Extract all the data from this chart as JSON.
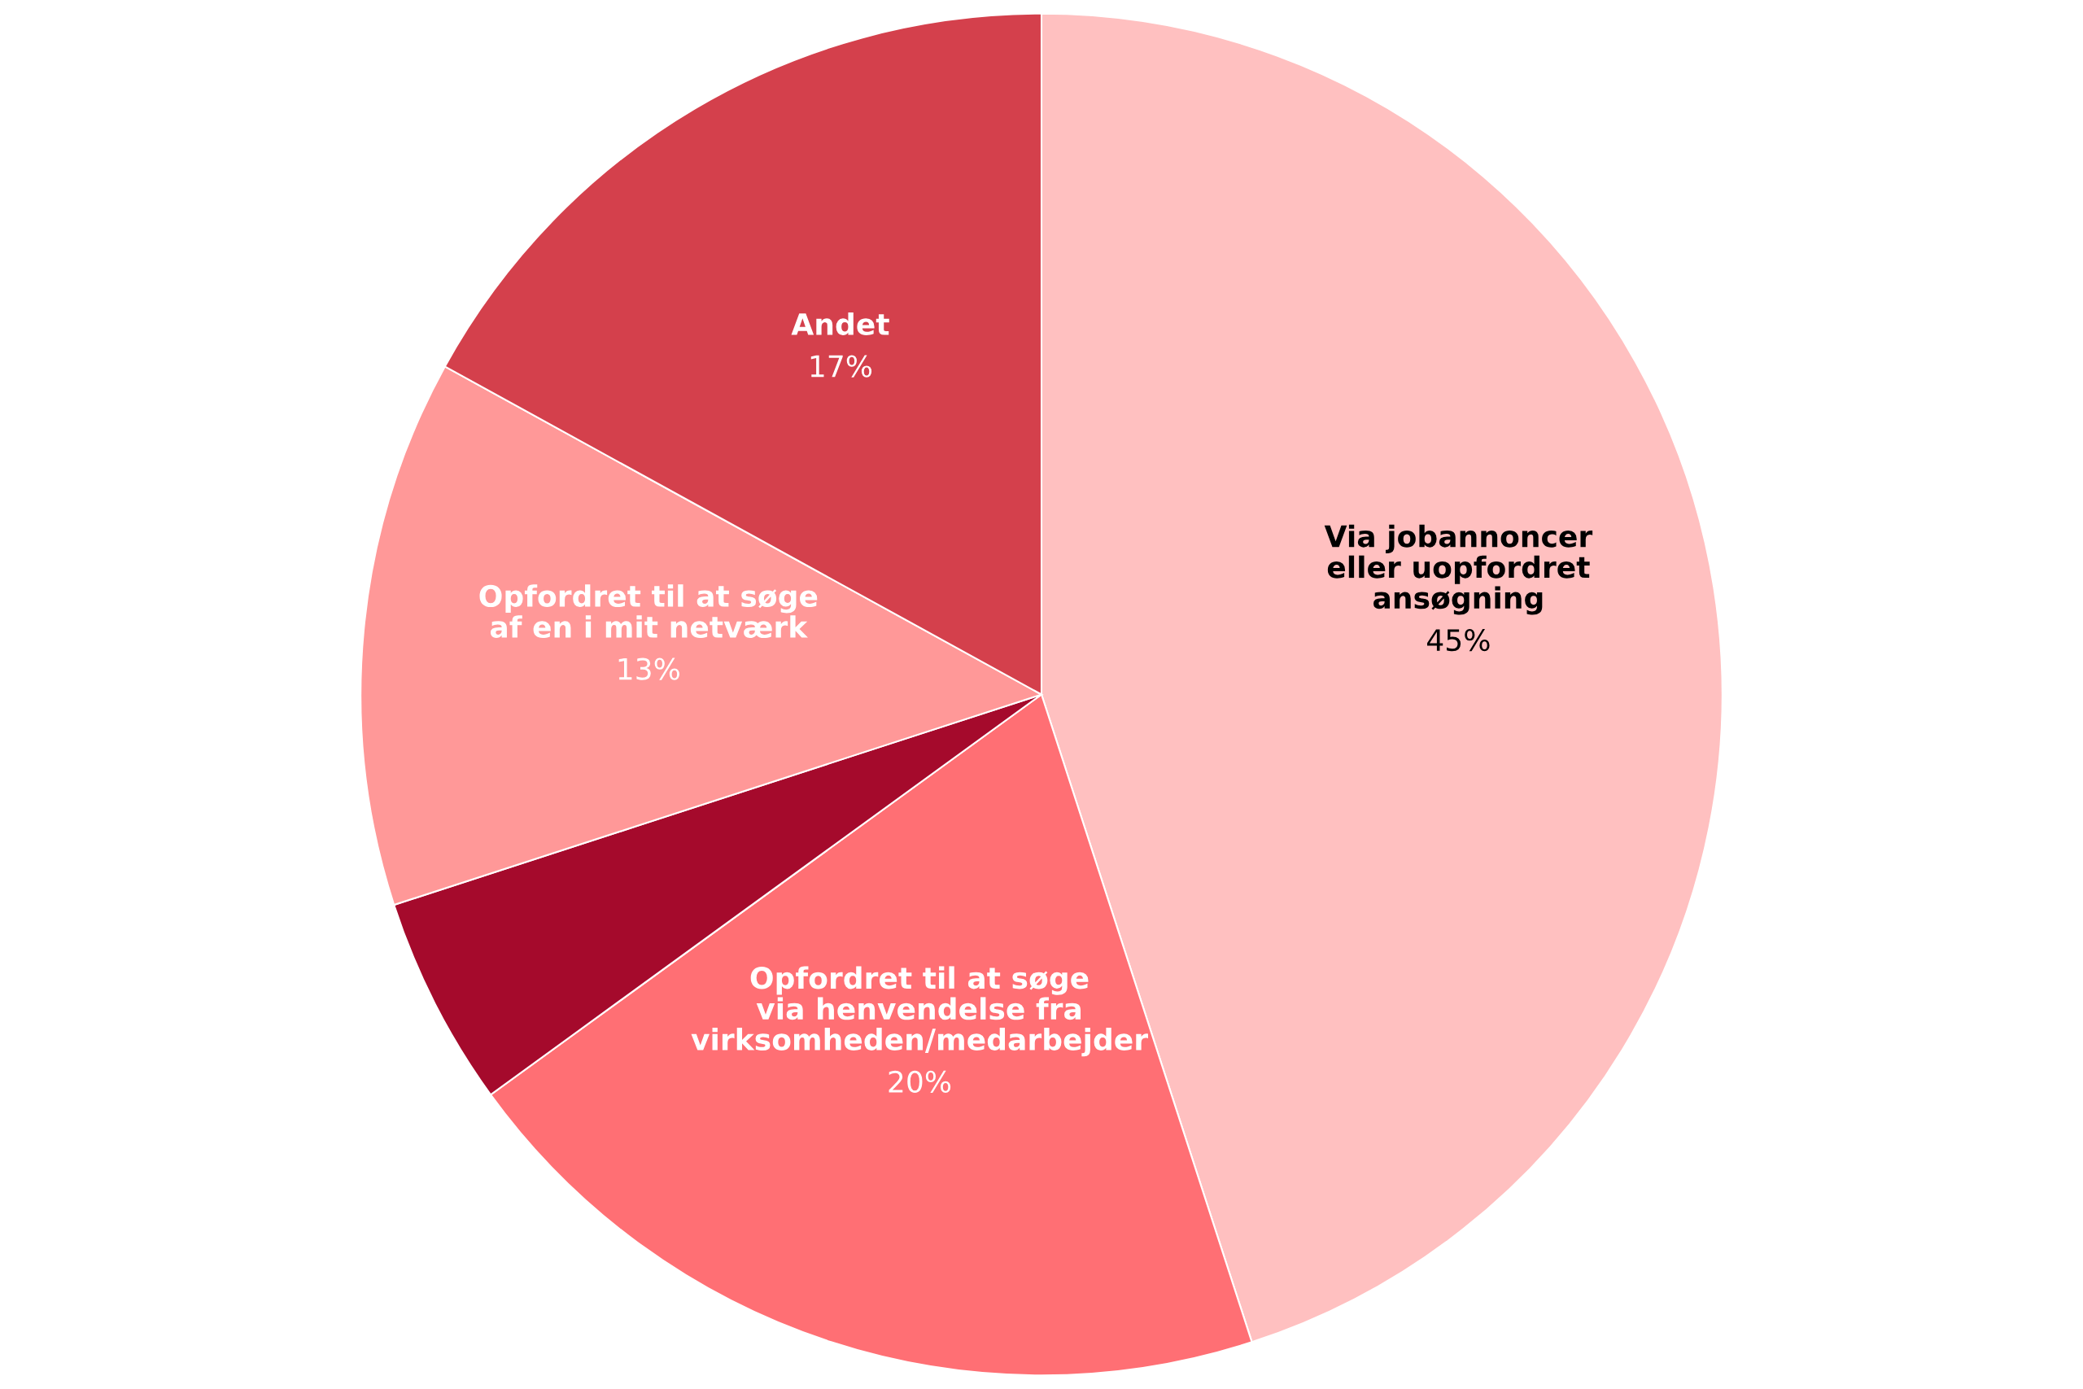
{
  "chart_data": {
    "type": "pie",
    "categories": [
      "Via jobannoncer\neller uopfordret\nansøgning",
      "Opfordret til at søge\nvia henvendelse fra\nvirksomheden/medarbejder",
      null,
      "Opfordret til at søge\naf en i mit netværk",
      "Andet"
    ],
    "values": [
      45,
      20,
      5,
      13,
      17
    ],
    "colors": [
      "#ffc0c0",
      "#ff6f74",
      "#a50a2c",
      "#ff9898",
      "#d4404c"
    ],
    "value_labels": [
      "45%",
      "20%",
      null,
      "13%",
      "17%"
    ]
  }
}
